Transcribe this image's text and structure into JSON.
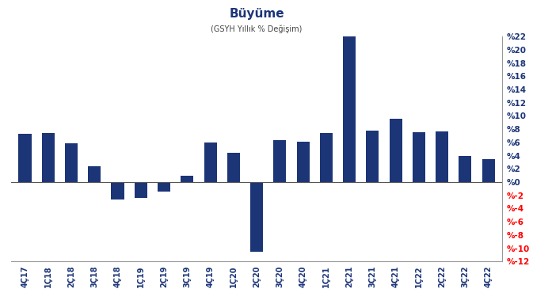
{
  "chart_data": {
    "type": "bar",
    "title": "Büyüme",
    "subtitle": "(GSYH Yıllık % Değişim)",
    "categories": [
      "4Ç17",
      "1Ç18",
      "2Ç18",
      "3Ç18",
      "4Ç18",
      "1Ç19",
      "2Ç19",
      "3Ç19",
      "4Ç19",
      "1Ç20",
      "2Ç20",
      "3Ç20",
      "4Ç20",
      "1Ç21",
      "2Ç21",
      "3Ç21",
      "4Ç21",
      "1Ç22",
      "2Ç22",
      "3Ç22",
      "4Ç22"
    ],
    "values": [
      7.3,
      7.4,
      5.8,
      2.4,
      -2.6,
      -2.4,
      -1.4,
      1.0,
      6.0,
      4.4,
      -10.5,
      6.3,
      6.1,
      7.4,
      22.0,
      7.8,
      9.6,
      7.5,
      7.7,
      4.0,
      3.5
    ],
    "color": "#1c3577",
    "ylim": [
      -12,
      22
    ],
    "yticks": [
      {
        "value": -12,
        "label": "%-12"
      },
      {
        "value": -10,
        "label": "%-10"
      },
      {
        "value": -8,
        "label": "%-8"
      },
      {
        "value": -6,
        "label": "%-6"
      },
      {
        "value": -4,
        "label": "%-4"
      },
      {
        "value": -2,
        "label": "%-2"
      },
      {
        "value": 0,
        "label": "%0"
      },
      {
        "value": 2,
        "label": "%2"
      },
      {
        "value": 4,
        "label": "%4"
      },
      {
        "value": 6,
        "label": "%6"
      },
      {
        "value": 8,
        "label": "%8"
      },
      {
        "value": 10,
        "label": "%10"
      },
      {
        "value": 12,
        "label": "%12"
      },
      {
        "value": 14,
        "label": "%14"
      },
      {
        "value": 16,
        "label": "%16"
      },
      {
        "value": 18,
        "label": "%18"
      },
      {
        "value": 20,
        "label": "%20"
      },
      {
        "value": 22,
        "label": "%22"
      }
    ],
    "grid": false
  }
}
